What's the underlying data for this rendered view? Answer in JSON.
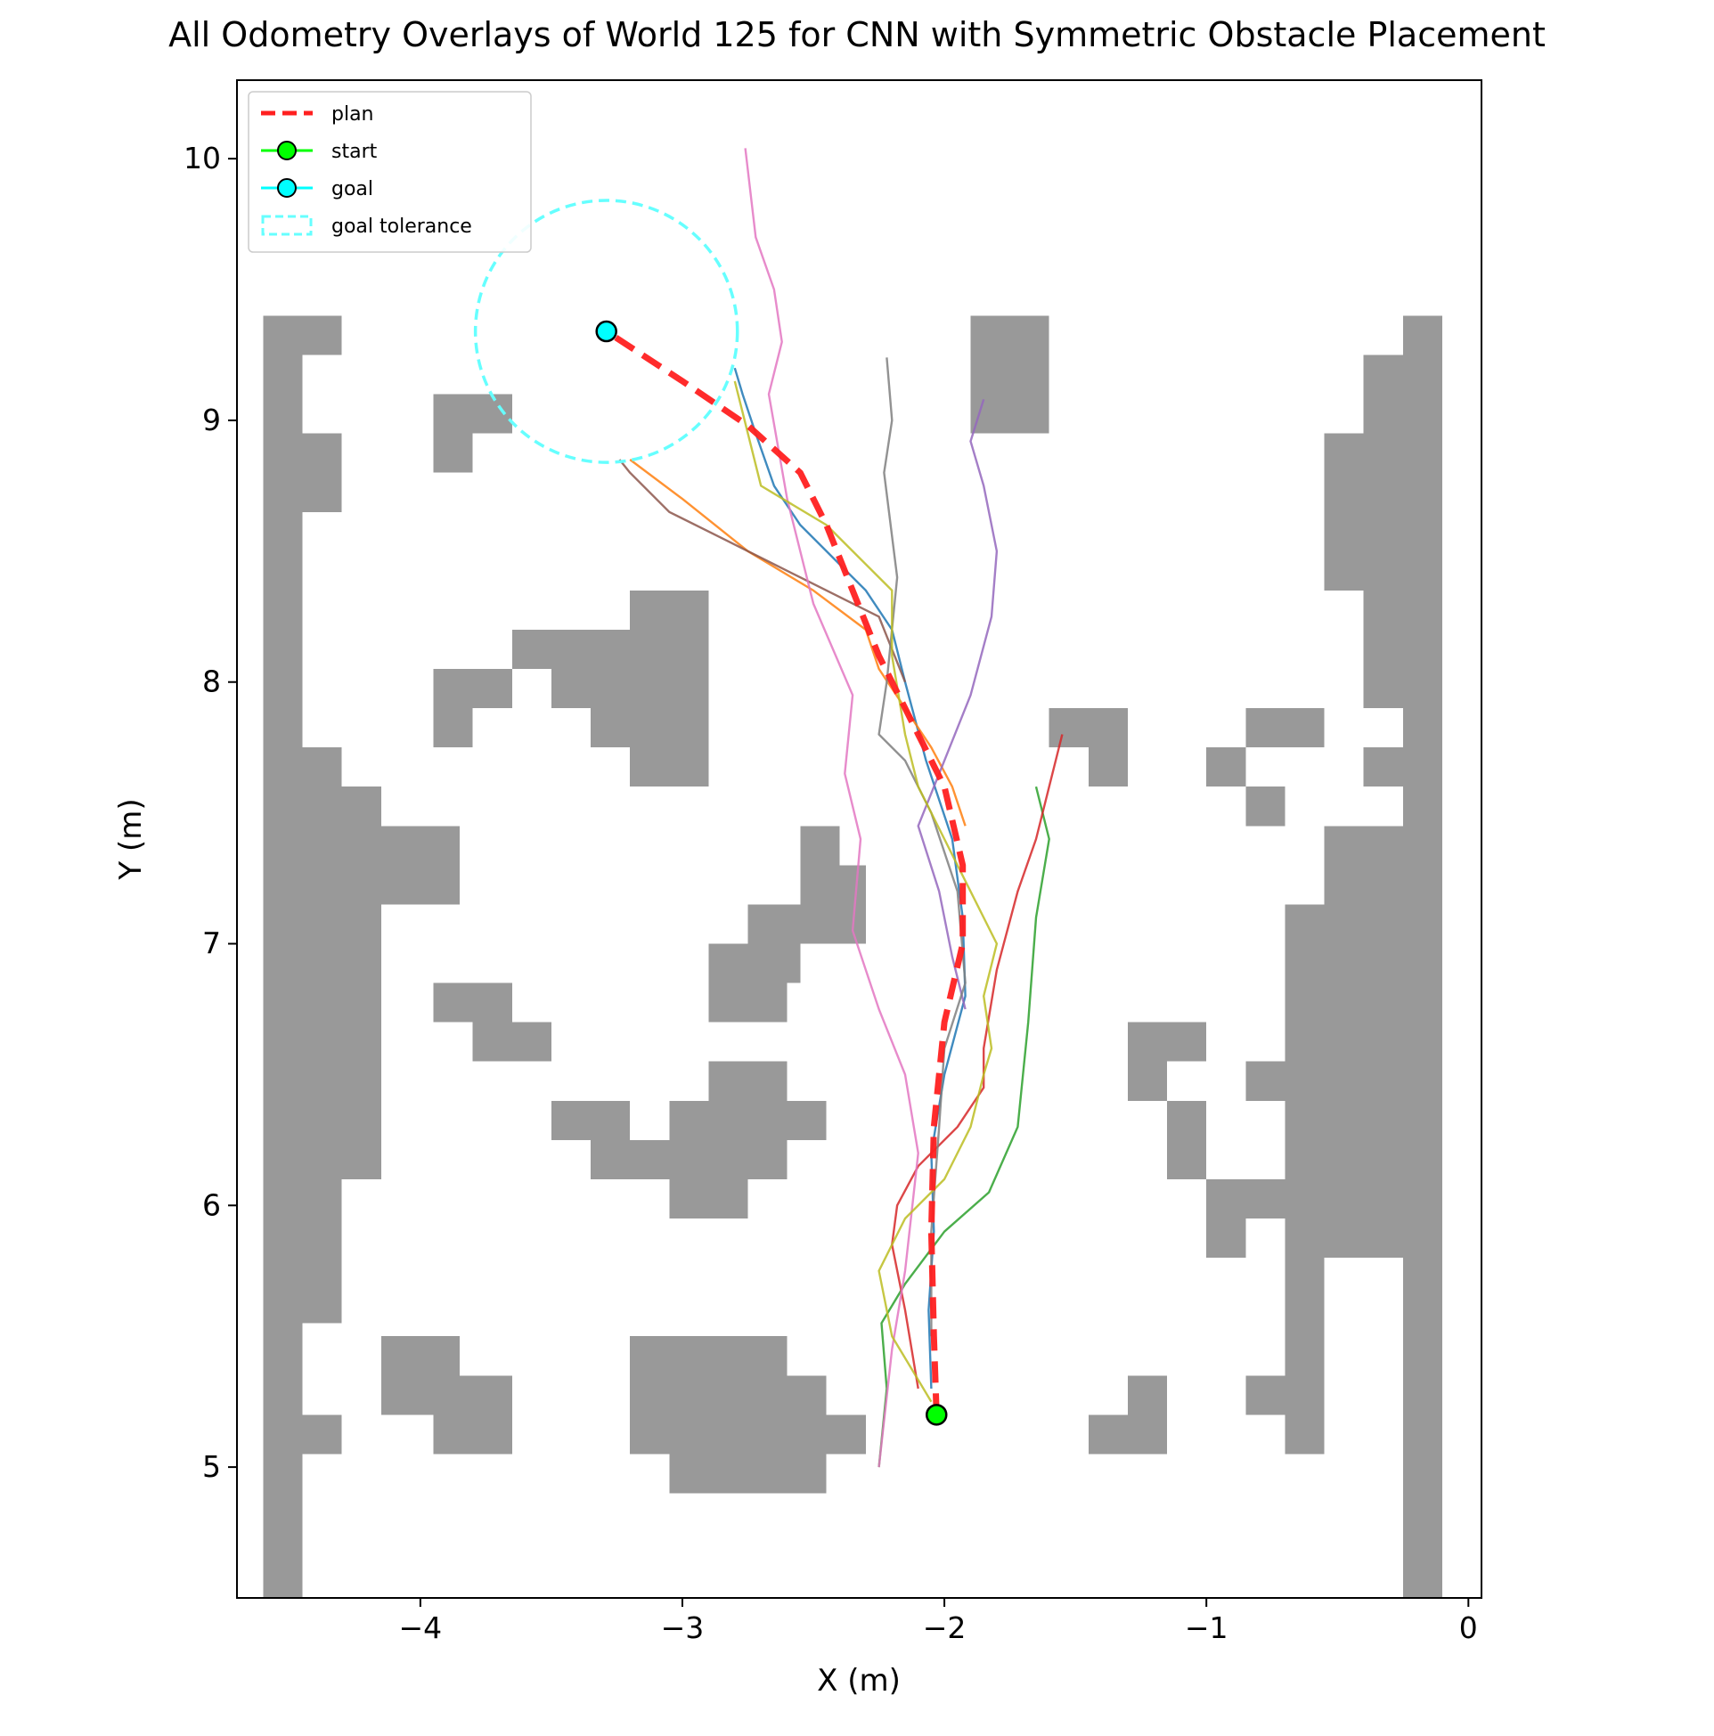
{
  "chart_data": {
    "type": "line",
    "title": "All Odometry Overlays of World 125 for CNN with Symmetric Obstacle Placement",
    "xlabel": "X (m)",
    "ylabel": "Y (m)",
    "xlim": [
      -4.7,
      0.05
    ],
    "ylim": [
      4.5,
      10.3
    ],
    "xticks": [
      {
        "value": -4,
        "label": "−4"
      },
      {
        "value": -3,
        "label": "−3"
      },
      {
        "value": -2,
        "label": "−2"
      },
      {
        "value": -1,
        "label": "−1"
      },
      {
        "value": 0,
        "label": "0"
      }
    ],
    "yticks": [
      {
        "value": 5,
        "label": "5"
      },
      {
        "value": 6,
        "label": "6"
      },
      {
        "value": 7,
        "label": "7"
      },
      {
        "value": 8,
        "label": "8"
      },
      {
        "value": 9,
        "label": "9"
      },
      {
        "value": 10,
        "label": "10"
      }
    ],
    "grid": false,
    "legend_position": "top-left",
    "legend": [
      {
        "label": "plan",
        "kind": "dashed-line",
        "color": "#ff2020"
      },
      {
        "label": "start",
        "kind": "marker",
        "color": "#00ff00"
      },
      {
        "label": "goal",
        "kind": "marker",
        "color": "#00ffff"
      },
      {
        "label": "goal tolerance",
        "kind": "dashed-box",
        "color": "#66ffff"
      }
    ],
    "obstacle_color": "#999999",
    "cell_size": 0.15,
    "obstacles": [
      [
        -4.6,
        -4.45,
        4.5,
        9.4
      ],
      [
        -4.45,
        -4.3,
        9.25,
        9.4
      ],
      [
        -4.45,
        -4.3,
        8.65,
        8.95
      ],
      [
        -4.45,
        -4.3,
        5.55,
        7.75
      ],
      [
        -4.3,
        -4.15,
        6.1,
        7.6
      ],
      [
        -4.15,
        -3.85,
        7.15,
        7.45
      ],
      [
        -4.45,
        -4.3,
        5.05,
        5.2
      ],
      [
        -3.95,
        -3.65,
        8.95,
        9.1
      ],
      [
        -3.95,
        -3.8,
        8.8,
        8.95
      ],
      [
        -3.65,
        -3.2,
        8.05,
        8.2
      ],
      [
        -3.95,
        -3.8,
        7.75,
        8.05
      ],
      [
        -3.8,
        -3.65,
        7.9,
        8.05
      ],
      [
        -3.2,
        -2.9,
        7.6,
        8.35
      ],
      [
        -3.5,
        -3.2,
        7.9,
        8.05
      ],
      [
        -3.35,
        -3.2,
        7.75,
        7.9
      ],
      [
        -3.95,
        -3.65,
        6.7,
        6.85
      ],
      [
        -3.8,
        -3.5,
        6.55,
        6.7
      ],
      [
        -2.55,
        -2.4,
        7.3,
        7.45
      ],
      [
        -2.55,
        -2.3,
        7.0,
        7.3
      ],
      [
        -2.75,
        -2.55,
        6.85,
        7.15
      ],
      [
        -2.9,
        -2.6,
        6.7,
        6.85
      ],
      [
        -2.9,
        -2.75,
        6.85,
        7.0
      ],
      [
        -2.9,
        -2.6,
        6.4,
        6.55
      ],
      [
        -3.05,
        -2.45,
        6.25,
        6.4
      ],
      [
        -3.5,
        -3.2,
        6.25,
        6.4
      ],
      [
        -3.35,
        -2.6,
        6.1,
        6.25
      ],
      [
        -3.05,
        -2.75,
        5.95,
        6.1
      ],
      [
        -4.15,
        -3.85,
        5.35,
        5.5
      ],
      [
        -4.15,
        -3.65,
        5.2,
        5.35
      ],
      [
        -3.95,
        -3.65,
        5.05,
        5.2
      ],
      [
        -3.2,
        -2.6,
        5.35,
        5.5
      ],
      [
        -3.2,
        -2.45,
        5.2,
        5.35
      ],
      [
        -3.2,
        -2.3,
        5.05,
        5.2
      ],
      [
        -3.05,
        -2.45,
        4.9,
        5.05
      ],
      [
        -1.9,
        -1.6,
        8.95,
        9.4
      ],
      [
        -1.9,
        -1.75,
        9.2,
        9.25
      ],
      [
        -1.6,
        -1.3,
        7.75,
        7.9
      ],
      [
        -1.45,
        -1.3,
        7.6,
        7.75
      ],
      [
        -1.0,
        -0.85,
        7.6,
        7.75
      ],
      [
        -0.85,
        -0.55,
        7.75,
        7.9
      ],
      [
        -0.85,
        -0.7,
        7.45,
        7.6
      ],
      [
        -0.25,
        -0.1,
        4.5,
        9.4
      ],
      [
        -0.4,
        -0.25,
        7.9,
        9.25
      ],
      [
        -0.55,
        -0.4,
        8.35,
        8.95
      ],
      [
        -0.4,
        -0.25,
        7.6,
        7.75
      ],
      [
        -0.55,
        -0.25,
        6.1,
        7.45
      ],
      [
        -0.7,
        -0.55,
        6.7,
        7.15
      ],
      [
        -0.7,
        -0.55,
        5.05,
        6.7
      ],
      [
        -1.3,
        -1.0,
        6.55,
        6.7
      ],
      [
        -1.3,
        -1.15,
        6.4,
        6.55
      ],
      [
        -0.85,
        -0.7,
        6.4,
        6.55
      ],
      [
        -1.15,
        -1.0,
        6.1,
        6.4
      ],
      [
        -1.0,
        -0.7,
        5.95,
        6.1
      ],
      [
        -1.0,
        -0.85,
        5.8,
        5.95
      ],
      [
        -0.55,
        -0.25,
        5.8,
        6.1
      ],
      [
        -0.85,
        -0.7,
        5.2,
        5.35
      ],
      [
        -1.45,
        -1.15,
        5.05,
        5.2
      ],
      [
        -1.3,
        -1.15,
        5.2,
        5.35
      ]
    ],
    "goal": {
      "x": -3.29,
      "y": 9.34
    },
    "start": {
      "x": -2.03,
      "y": 5.2
    },
    "goal_tolerance_radius": 0.5,
    "series": [
      {
        "color": "#ff2020",
        "role": "plan",
        "points": [
          [
            -2.03,
            5.2
          ],
          [
            -2.04,
            5.5
          ],
          [
            -2.05,
            5.9
          ],
          [
            -2.04,
            6.3
          ],
          [
            -2.0,
            6.7
          ],
          [
            -1.93,
            7.0
          ],
          [
            -1.93,
            7.3
          ],
          [
            -2.0,
            7.6
          ],
          [
            -2.1,
            7.8
          ],
          [
            -2.25,
            8.1
          ],
          [
            -2.35,
            8.35
          ],
          [
            -2.45,
            8.6
          ],
          [
            -2.55,
            8.8
          ],
          [
            -2.75,
            8.98
          ],
          [
            -3.0,
            9.15
          ],
          [
            -3.29,
            9.34
          ]
        ]
      },
      {
        "color": "#1f77b4",
        "points": [
          [
            -2.05,
            5.3
          ],
          [
            -2.06,
            5.6
          ],
          [
            -2.04,
            5.9
          ],
          [
            -2.05,
            6.2
          ],
          [
            -2.0,
            6.5
          ],
          [
            -1.92,
            6.8
          ],
          [
            -1.93,
            7.1
          ],
          [
            -1.97,
            7.4
          ],
          [
            -2.07,
            7.7
          ],
          [
            -2.15,
            8.0
          ],
          [
            -2.2,
            8.2
          ],
          [
            -2.3,
            8.35
          ],
          [
            -2.4,
            8.45
          ],
          [
            -2.55,
            8.6
          ],
          [
            -2.65,
            8.75
          ],
          [
            -2.72,
            8.95
          ],
          [
            -2.77,
            9.1
          ],
          [
            -2.8,
            9.2
          ]
        ]
      },
      {
        "color": "#ff7f0e",
        "points": [
          [
            -1.92,
            7.45
          ],
          [
            -1.97,
            7.6
          ],
          [
            -2.05,
            7.75
          ],
          [
            -2.15,
            7.9
          ],
          [
            -2.25,
            8.05
          ],
          [
            -2.3,
            8.2
          ],
          [
            -2.5,
            8.35
          ],
          [
            -2.75,
            8.5
          ],
          [
            -3.0,
            8.7
          ],
          [
            -3.2,
            8.85
          ]
        ]
      },
      {
        "color": "#2ca02c",
        "points": [
          [
            -2.25,
            5.0
          ],
          [
            -2.22,
            5.3
          ],
          [
            -2.24,
            5.55
          ],
          [
            -2.15,
            5.7
          ],
          [
            -2.0,
            5.9
          ],
          [
            -1.83,
            6.05
          ],
          [
            -1.72,
            6.3
          ],
          [
            -1.68,
            6.7
          ],
          [
            -1.65,
            7.1
          ],
          [
            -1.6,
            7.4
          ],
          [
            -1.65,
            7.6
          ]
        ]
      },
      {
        "color": "#d62728",
        "points": [
          [
            -2.1,
            5.3
          ],
          [
            -2.15,
            5.6
          ],
          [
            -2.2,
            5.85
          ],
          [
            -2.18,
            6.0
          ],
          [
            -2.1,
            6.15
          ],
          [
            -1.95,
            6.3
          ],
          [
            -1.85,
            6.45
          ],
          [
            -1.85,
            6.6
          ],
          [
            -1.8,
            6.9
          ],
          [
            -1.72,
            7.2
          ],
          [
            -1.65,
            7.4
          ],
          [
            -1.6,
            7.6
          ],
          [
            -1.55,
            7.8
          ]
        ]
      },
      {
        "color": "#9467bd",
        "points": [
          [
            -1.92,
            6.75
          ],
          [
            -1.97,
            6.95
          ],
          [
            -2.02,
            7.2
          ],
          [
            -2.1,
            7.45
          ],
          [
            -2.0,
            7.7
          ],
          [
            -1.9,
            7.95
          ],
          [
            -1.82,
            8.25
          ],
          [
            -1.8,
            8.5
          ],
          [
            -1.85,
            8.75
          ],
          [
            -1.9,
            8.92
          ],
          [
            -1.85,
            9.08
          ]
        ]
      },
      {
        "color": "#8c564b",
        "points": [
          [
            -2.15,
            8.0
          ],
          [
            -2.25,
            8.25
          ],
          [
            -2.55,
            8.4
          ],
          [
            -2.85,
            8.55
          ],
          [
            -3.05,
            8.65
          ],
          [
            -3.2,
            8.8
          ],
          [
            -3.24,
            8.85
          ]
        ]
      },
      {
        "color": "#e377c2",
        "points": [
          [
            -2.25,
            5.0
          ],
          [
            -2.2,
            5.45
          ],
          [
            -2.15,
            5.75
          ],
          [
            -2.1,
            6.2
          ],
          [
            -2.15,
            6.5
          ],
          [
            -2.25,
            6.75
          ],
          [
            -2.35,
            7.05
          ],
          [
            -2.32,
            7.4
          ],
          [
            -2.38,
            7.65
          ],
          [
            -2.35,
            7.95
          ],
          [
            -2.5,
            8.3
          ],
          [
            -2.6,
            8.7
          ],
          [
            -2.67,
            9.1
          ],
          [
            -2.62,
            9.3
          ],
          [
            -2.65,
            9.5
          ],
          [
            -2.72,
            9.7
          ],
          [
            -2.76,
            10.04
          ]
        ]
      },
      {
        "color": "#7f7f7f",
        "points": [
          [
            -2.05,
            5.5
          ],
          [
            -2.05,
            5.9
          ],
          [
            -2.02,
            6.3
          ],
          [
            -2.0,
            6.6
          ],
          [
            -1.92,
            6.85
          ],
          [
            -1.95,
            7.2
          ],
          [
            -2.05,
            7.5
          ],
          [
            -2.15,
            7.7
          ],
          [
            -2.25,
            7.8
          ],
          [
            -2.22,
            8.0
          ],
          [
            -2.18,
            8.4
          ],
          [
            -2.23,
            8.8
          ],
          [
            -2.2,
            9.0
          ],
          [
            -2.22,
            9.24
          ]
        ]
      },
      {
        "color": "#bcbd22",
        "points": [
          [
            -2.05,
            5.25
          ],
          [
            -2.2,
            5.5
          ],
          [
            -2.25,
            5.75
          ],
          [
            -2.15,
            5.95
          ],
          [
            -2.0,
            6.1
          ],
          [
            -1.9,
            6.3
          ],
          [
            -1.85,
            6.5
          ],
          [
            -1.82,
            6.6
          ],
          [
            -1.85,
            6.8
          ],
          [
            -1.8,
            7.0
          ],
          [
            -1.9,
            7.2
          ],
          [
            -2.0,
            7.4
          ],
          [
            -2.1,
            7.6
          ],
          [
            -2.15,
            7.8
          ],
          [
            -2.2,
            8.1
          ],
          [
            -2.2,
            8.35
          ],
          [
            -2.45,
            8.6
          ],
          [
            -2.7,
            8.75
          ],
          [
            -2.75,
            8.95
          ],
          [
            -2.8,
            9.15
          ]
        ]
      }
    ]
  }
}
